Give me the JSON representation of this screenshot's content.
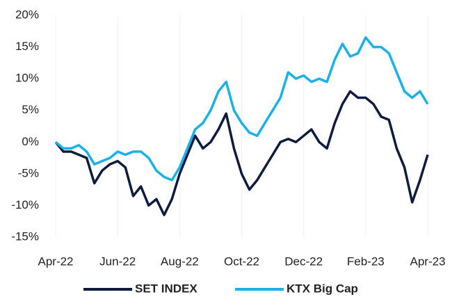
{
  "chart_data": {
    "type": "line",
    "x": [
      0,
      0.25,
      0.5,
      0.75,
      1,
      1.25,
      1.5,
      1.75,
      2,
      2.25,
      2.5,
      2.75,
      3,
      3.25,
      3.5,
      3.75,
      4,
      4.25,
      4.5,
      4.75,
      5,
      5.25,
      5.5,
      5.75,
      6,
      6.25,
      6.5,
      6.75,
      7,
      7.25,
      7.5,
      7.75,
      8,
      8.25,
      8.5,
      8.75,
      9,
      9.25,
      9.5,
      9.75,
      10,
      10.25,
      10.5,
      10.75,
      11,
      11.25,
      11.5,
      11.75,
      12
    ],
    "series": [
      {
        "name": "SET INDEX",
        "color": "#0d1b3e",
        "values": [
          0,
          -1.5,
          -1.5,
          -2,
          -2.5,
          -6.5,
          -4.5,
          -3.5,
          -3,
          -4,
          -8.5,
          -7,
          -10,
          -9,
          -11.5,
          -9,
          -5,
          -2,
          1,
          -1,
          0,
          2,
          4.5,
          -1,
          -5,
          -7.5,
          -6,
          -4,
          -2,
          0,
          0.5,
          0,
          1,
          2,
          0,
          -1,
          3,
          6,
          8,
          7,
          7,
          6,
          4,
          3.5,
          -1,
          -4,
          -9.5,
          -6,
          -2
        ]
      },
      {
        "name": "KTX Big Cap",
        "color": "#1ab0e8",
        "values": [
          0,
          -1,
          -1,
          -0.5,
          -1.5,
          -3.5,
          -3,
          -2.5,
          -1.5,
          -2,
          -1.5,
          -1.5,
          -2.5,
          -4.5,
          -5.5,
          -6,
          -4,
          -1,
          2,
          3,
          5,
          8,
          9.5,
          5,
          3,
          1.5,
          1,
          3,
          5,
          7,
          11,
          10,
          10.5,
          9.5,
          10,
          9.5,
          13,
          15.5,
          13.5,
          14,
          16.5,
          15,
          15,
          14,
          11,
          8,
          7,
          8,
          6
        ]
      }
    ],
    "xlim": [
      0,
      12
    ],
    "xticks": [
      {
        "value": 0,
        "label": "Apr-22"
      },
      {
        "value": 2,
        "label": "Jun-22"
      },
      {
        "value": 4,
        "label": "Aug-22"
      },
      {
        "value": 6,
        "label": "Oct-22"
      },
      {
        "value": 8,
        "label": "Dec-22"
      },
      {
        "value": 10,
        "label": "Feb-23"
      },
      {
        "value": 12,
        "label": "Apr-23"
      }
    ],
    "ylim": [
      -15,
      20
    ],
    "yticks": [
      {
        "value": -15,
        "label": "-15%"
      },
      {
        "value": -10,
        "label": "-10%"
      },
      {
        "value": -5,
        "label": "-5%"
      },
      {
        "value": 0,
        "label": "0%"
      },
      {
        "value": 5,
        "label": "5%"
      },
      {
        "value": 10,
        "label": "10%"
      },
      {
        "value": 15,
        "label": "15%"
      },
      {
        "value": 20,
        "label": "20%"
      }
    ],
    "grid": true,
    "legend": "bottom"
  }
}
